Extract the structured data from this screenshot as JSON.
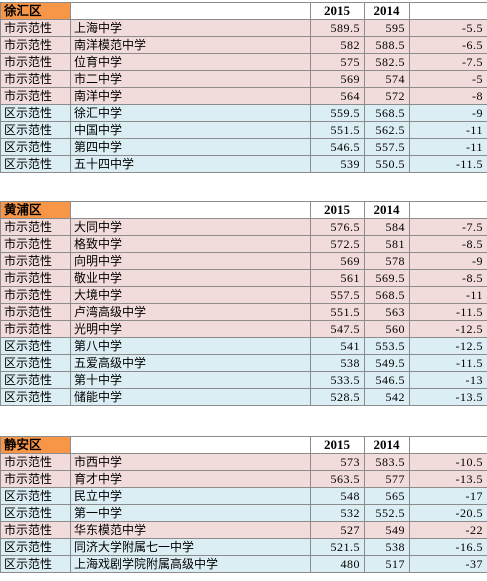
{
  "colors": {
    "district_header": "#f79646",
    "municipal_row": "#f2dcdb",
    "district_row": "#dbeef4"
  },
  "sections": [
    {
      "district": "徐汇区",
      "year_a": "2015",
      "year_b": "2014",
      "rows": [
        {
          "type": "市示范性",
          "school": "上海中学",
          "s2015": "589.5",
          "s2014": "595",
          "diff": "-5.5",
          "kind": "pink"
        },
        {
          "type": "市示范性",
          "school": "南洋模范中学",
          "s2015": "582",
          "s2014": "588.5",
          "diff": "-6.5",
          "kind": "pink"
        },
        {
          "type": "市示范性",
          "school": "位育中学",
          "s2015": "575",
          "s2014": "582.5",
          "diff": "-7.5",
          "kind": "pink"
        },
        {
          "type": "市示范性",
          "school": "市二中学",
          "s2015": "569",
          "s2014": "574",
          "diff": "-5",
          "kind": "pink"
        },
        {
          "type": "市示范性",
          "school": "南洋中学",
          "s2015": "564",
          "s2014": "572",
          "diff": "-8",
          "kind": "pink"
        },
        {
          "type": "区示范性",
          "school": "徐汇中学",
          "s2015": "559.5",
          "s2014": "568.5",
          "diff": "-9",
          "kind": "blue"
        },
        {
          "type": "区示范性",
          "school": "中国中学",
          "s2015": "551.5",
          "s2014": "562.5",
          "diff": "-11",
          "kind": "blue"
        },
        {
          "type": "区示范性",
          "school": "第四中学",
          "s2015": "546.5",
          "s2014": "557.5",
          "diff": "-11",
          "kind": "blue"
        },
        {
          "type": "区示范性",
          "school": "五十四中学",
          "s2015": "539",
          "s2014": "550.5",
          "diff": "-11.5",
          "kind": "blue"
        }
      ]
    },
    {
      "district": "黄浦区",
      "year_a": "2015",
      "year_b": "2014",
      "rows": [
        {
          "type": "市示范性",
          "school": "大同中学",
          "s2015": "576.5",
          "s2014": "584",
          "diff": "-7.5",
          "kind": "pink"
        },
        {
          "type": "市示范性",
          "school": "格致中学",
          "s2015": "572.5",
          "s2014": "581",
          "diff": "-8.5",
          "kind": "pink"
        },
        {
          "type": "市示范性",
          "school": "向明中学",
          "s2015": "569",
          "s2014": "578",
          "diff": "-9",
          "kind": "pink"
        },
        {
          "type": "市示范性",
          "school": "敬业中学",
          "s2015": "561",
          "s2014": "569.5",
          "diff": "-8.5",
          "kind": "pink"
        },
        {
          "type": "市示范性",
          "school": "大境中学",
          "s2015": "557.5",
          "s2014": "568.5",
          "diff": "-11",
          "kind": "pink"
        },
        {
          "type": "市示范性",
          "school": "卢湾高级中学",
          "s2015": "551.5",
          "s2014": "563",
          "diff": "-11.5",
          "kind": "pink"
        },
        {
          "type": "市示范性",
          "school": "光明中学",
          "s2015": "547.5",
          "s2014": "560",
          "diff": "-12.5",
          "kind": "pink"
        },
        {
          "type": "区示范性",
          "school": "第八中学",
          "s2015": "541",
          "s2014": "553.5",
          "diff": "-12.5",
          "kind": "blue"
        },
        {
          "type": "区示范性",
          "school": "五爱高级中学",
          "s2015": "538",
          "s2014": "549.5",
          "diff": "-11.5",
          "kind": "blue"
        },
        {
          "type": "区示范性",
          "school": "第十中学",
          "s2015": "533.5",
          "s2014": "546.5",
          "diff": "-13",
          "kind": "blue"
        },
        {
          "type": "区示范性",
          "school": "储能中学",
          "s2015": "528.5",
          "s2014": "542",
          "diff": "-13.5",
          "kind": "blue"
        }
      ]
    },
    {
      "district": "静安区",
      "year_a": "2015",
      "year_b": "2014",
      "rows": [
        {
          "type": "市示范性",
          "school": "市西中学",
          "s2015": "573",
          "s2014": "583.5",
          "diff": "-10.5",
          "kind": "pink"
        },
        {
          "type": "市示范性",
          "school": "育才中学",
          "s2015": "563.5",
          "s2014": "577",
          "diff": "-13.5",
          "kind": "pink"
        },
        {
          "type": "区示范性",
          "school": "民立中学",
          "s2015": "548",
          "s2014": "565",
          "diff": "-17",
          "kind": "blue"
        },
        {
          "type": "区示范性",
          "school": "第一中学",
          "s2015": "532",
          "s2014": "552.5",
          "diff": "-20.5",
          "kind": "blue"
        },
        {
          "type": "市示范性",
          "school": "华东模范中学",
          "s2015": "527",
          "s2014": "549",
          "diff": "-22",
          "kind": "pink"
        },
        {
          "type": "区示范性",
          "school": "同济大学附属七一中学",
          "s2015": "521.5",
          "s2014": "538",
          "diff": "-16.5",
          "kind": "blue"
        },
        {
          "type": "区示范性",
          "school": "上海戏剧学院附属高级中学",
          "s2015": "480",
          "s2014": "517",
          "diff": "-37",
          "kind": "blue"
        }
      ]
    }
  ]
}
